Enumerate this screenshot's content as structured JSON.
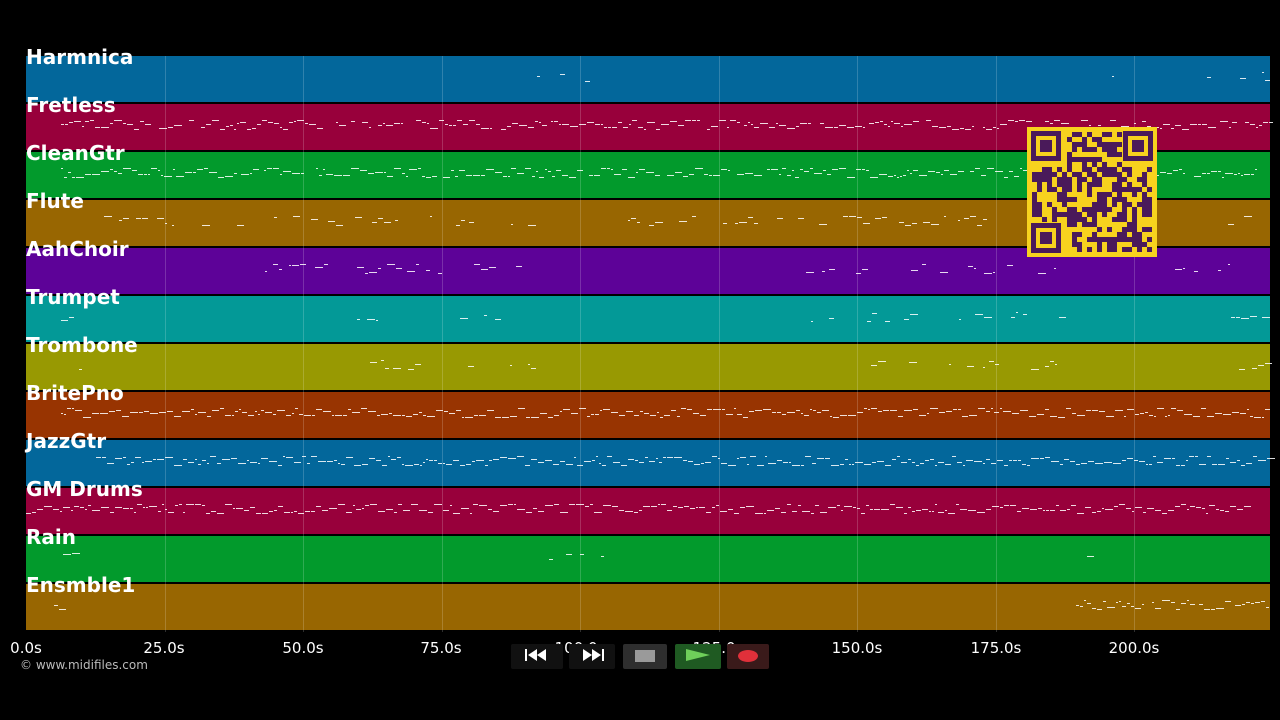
{
  "tracks": [
    {
      "name": "Harmnica",
      "color": "#03679b"
    },
    {
      "name": "Fretless",
      "color": "#98003b"
    },
    {
      "name": "CleanGtr",
      "color": "#029a2c"
    },
    {
      "name": "Flute",
      "color": "#986601"
    },
    {
      "name": "AahChoir",
      "color": "#5d0298"
    },
    {
      "name": "Trumpet",
      "color": "#039997"
    },
    {
      "name": "Trombone",
      "color": "#989902"
    },
    {
      "name": "BritePno",
      "color": "#983401"
    },
    {
      "name": "JazzGtr",
      "color": "#03679b"
    },
    {
      "name": "GM Drums",
      "color": "#98003b"
    },
    {
      "name": "Rain",
      "color": "#029a2c"
    },
    {
      "name": "Ensmble1",
      "color": "#986601"
    }
  ],
  "time_axis": {
    "max_seconds": 224.5,
    "ticks": [
      "0.0s",
      "25.0s",
      "50.0s",
      "75.0s",
      "100.0s",
      "125.0s",
      "150.0s",
      "175.0s",
      "200.0s"
    ]
  },
  "copyright": "© www.midifiles.com",
  "transport": {
    "rewind": "rewind-icon",
    "fast_forward": "fast-forward-icon",
    "stop": "stop-icon",
    "play": "play-icon",
    "record": "record-icon"
  },
  "qr_code": "qr-code-icon"
}
